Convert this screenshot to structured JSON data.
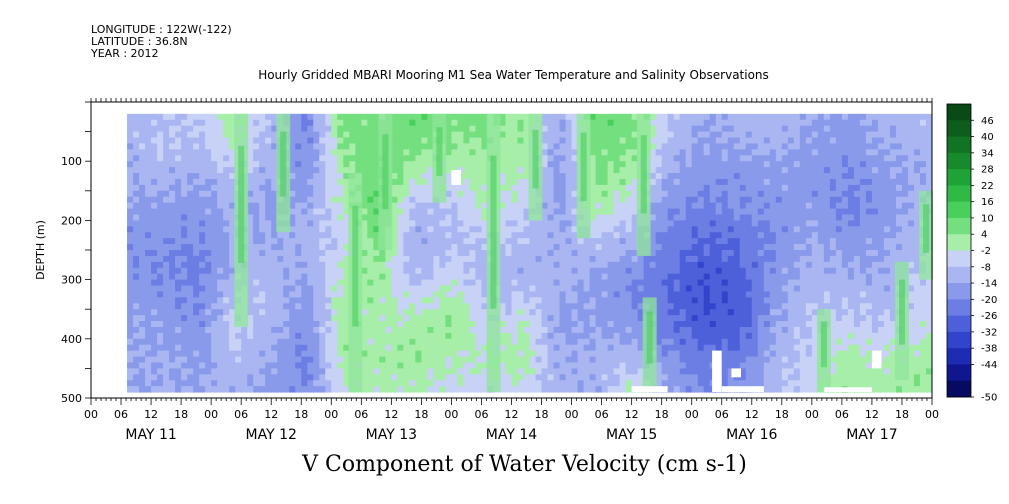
{
  "header": {
    "longitude": "LONGITUDE : 122W(-122)",
    "latitude": "LATITUDE : 36.8N",
    "year": "YEAR : 2012"
  },
  "chart_data": {
    "type": "heatmap",
    "title": "Hourly Gridded MBARI Mooring M1 Sea Water Temperature and Salinity Observations",
    "footer_label": "V Component of Water Velocity (cm s-1)",
    "ylabel": "DEPTH (m)",
    "ylim": [
      500,
      0
    ],
    "y_ticks": [
      100,
      200,
      300,
      400,
      500
    ],
    "x_hour_tick_labels": [
      "00",
      "06",
      "12",
      "18",
      "00",
      "06",
      "12",
      "18",
      "00",
      "06",
      "12",
      "18",
      "00",
      "06",
      "12",
      "18",
      "00",
      "06",
      "12",
      "18",
      "00",
      "06",
      "12",
      "18",
      "00",
      "06",
      "12",
      "18",
      "00"
    ],
    "x_day_labels": [
      "MAY 11",
      "MAY 12",
      "MAY 13",
      "MAY 14",
      "MAY 15",
      "MAY 16",
      "MAY 17"
    ],
    "x_range_days": [
      0,
      7
    ],
    "data_extent": {
      "start_day": 0.3,
      "end_day": 7.0,
      "depth_top": 20,
      "depth_bottom": 490
    },
    "colorbar": {
      "labels": [
        "46",
        "40",
        "34",
        "28",
        "22",
        "16",
        "10",
        "4",
        "-2",
        "-8",
        "-14",
        "-20",
        "-26",
        "-32",
        "-38",
        "-44",
        "-50"
      ],
      "colors": [
        "#0a4a16",
        "#0d5e1d",
        "#117424",
        "#168a2c",
        "#1fa237",
        "#2eba45",
        "#49cf5c",
        "#74df7e",
        "#a7eea9",
        "#c8d2f6",
        "#a9b6f2",
        "#8a9aeb",
        "#6c7ee4",
        "#4d60da",
        "#3244cc",
        "#1e2bb3",
        "#0f1690",
        "#060a60"
      ],
      "range": [
        -50,
        52
      ]
    },
    "column_profiles": [
      {
        "day": 0.3,
        "v": [
          -8,
          -8,
          -10,
          -12,
          -14,
          -14,
          -12,
          -10,
          -10,
          -12
        ]
      },
      {
        "day": 0.6,
        "v": [
          -6,
          -4,
          -8,
          -12,
          -14,
          -16,
          -14,
          -12,
          -10,
          -10
        ]
      },
      {
        "day": 0.9,
        "v": [
          -4,
          -6,
          -10,
          -14,
          -16,
          -18,
          -16,
          -14,
          -12,
          -10
        ]
      },
      {
        "day": 1.2,
        "v": [
          4,
          2,
          -4,
          -8,
          -10,
          -8,
          -4,
          -2,
          -6,
          -8
        ]
      },
      {
        "day": 1.5,
        "v": [
          -6,
          -8,
          -10,
          -12,
          -10,
          -8,
          -6,
          -8,
          -10,
          -12
        ]
      },
      {
        "day": 1.8,
        "v": [
          -18,
          -16,
          -14,
          -10,
          -8,
          -10,
          -14,
          -16,
          -18,
          -16
        ]
      },
      {
        "day": 2.1,
        "v": [
          10,
          8,
          4,
          2,
          -2,
          2,
          4,
          6,
          4,
          2
        ]
      },
      {
        "day": 2.4,
        "v": [
          8,
          10,
          12,
          14,
          10,
          6,
          4,
          2,
          4,
          2
        ]
      },
      {
        "day": 2.7,
        "v": [
          12,
          8,
          2,
          -6,
          -10,
          -8,
          -2,
          4,
          6,
          2
        ]
      },
      {
        "day": 3.0,
        "v": [
          10,
          6,
          0,
          -4,
          -6,
          -2,
          4,
          6,
          2,
          -2
        ]
      },
      {
        "day": 3.3,
        "v": [
          8,
          6,
          4,
          2,
          -4,
          -8,
          -6,
          -2,
          2,
          -4
        ]
      },
      {
        "day": 3.6,
        "v": [
          6,
          4,
          2,
          -2,
          -6,
          -8,
          -4,
          2,
          4,
          -2
        ]
      },
      {
        "day": 3.9,
        "v": [
          -10,
          -12,
          -14,
          -12,
          -10,
          -8,
          -10,
          -12,
          -10,
          -8
        ]
      },
      {
        "day": 4.2,
        "v": [
          12,
          10,
          8,
          4,
          -4,
          -10,
          -12,
          -10,
          -8,
          -10
        ]
      },
      {
        "day": 4.5,
        "v": [
          10,
          8,
          4,
          -2,
          -8,
          -14,
          -16,
          -12,
          -6,
          4
        ]
      },
      {
        "day": 4.8,
        "v": [
          -4,
          -6,
          -10,
          -14,
          -18,
          -20,
          -22,
          -18,
          -14,
          -10
        ]
      },
      {
        "day": 5.1,
        "v": [
          -10,
          -12,
          -14,
          -18,
          -22,
          -26,
          -28,
          -26,
          -20,
          -16
        ]
      },
      {
        "day": 5.4,
        "v": [
          -8,
          -10,
          -14,
          -16,
          -20,
          -24,
          -26,
          -24,
          -18,
          -14
        ]
      },
      {
        "day": 5.7,
        "v": [
          -6,
          -8,
          -12,
          -14,
          -16,
          -14,
          -12,
          -10,
          -8,
          -6
        ]
      },
      {
        "day": 6.0,
        "v": [
          -10,
          -12,
          -14,
          -12,
          -10,
          -8,
          -6,
          -4,
          -2,
          0
        ]
      },
      {
        "day": 6.3,
        "v": [
          -12,
          -14,
          -16,
          -18,
          -14,
          -10,
          -6,
          -2,
          4,
          6
        ]
      },
      {
        "day": 6.6,
        "v": [
          -8,
          -10,
          -12,
          -14,
          -12,
          -10,
          -8,
          -4,
          2,
          4
        ]
      },
      {
        "day": 6.9,
        "v": [
          -6,
          -8,
          -10,
          -8,
          -6,
          -4,
          -2,
          0,
          4,
          6
        ]
      }
    ],
    "green_streaks": [
      {
        "day": 1.25,
        "d0": 20,
        "d1": 380
      },
      {
        "day": 1.6,
        "d0": 20,
        "d1": 220
      },
      {
        "day": 2.2,
        "d0": 120,
        "d1": 490
      },
      {
        "day": 2.45,
        "d0": 20,
        "d1": 250
      },
      {
        "day": 2.9,
        "d0": 20,
        "d1": 170
      },
      {
        "day": 3.35,
        "d0": 20,
        "d1": 490
      },
      {
        "day": 3.7,
        "d0": 20,
        "d1": 200
      },
      {
        "day": 4.1,
        "d0": 20,
        "d1": 230
      },
      {
        "day": 4.6,
        "d0": 20,
        "d1": 260
      },
      {
        "day": 4.65,
        "d0": 330,
        "d1": 490
      },
      {
        "day": 6.1,
        "d0": 350,
        "d1": 490
      },
      {
        "day": 6.75,
        "d0": 270,
        "d1": 470
      },
      {
        "day": 6.95,
        "d0": 150,
        "d1": 300
      }
    ],
    "missing_blocks": [
      {
        "day0": 3.0,
        "day1": 3.08,
        "d0": 115,
        "d1": 140
      },
      {
        "day0": 4.5,
        "day1": 4.8,
        "d0": 480,
        "d1": 490
      },
      {
        "day0": 5.17,
        "day1": 5.25,
        "d0": 420,
        "d1": 490
      },
      {
        "day0": 5.25,
        "day1": 5.6,
        "d0": 480,
        "d1": 490
      },
      {
        "day0": 5.33,
        "day1": 5.41,
        "d0": 450,
        "d1": 465
      },
      {
        "day0": 6.1,
        "day1": 6.5,
        "d0": 482,
        "d1": 490
      },
      {
        "day0": 6.5,
        "day1": 6.58,
        "d0": 420,
        "d1": 450
      }
    ]
  }
}
